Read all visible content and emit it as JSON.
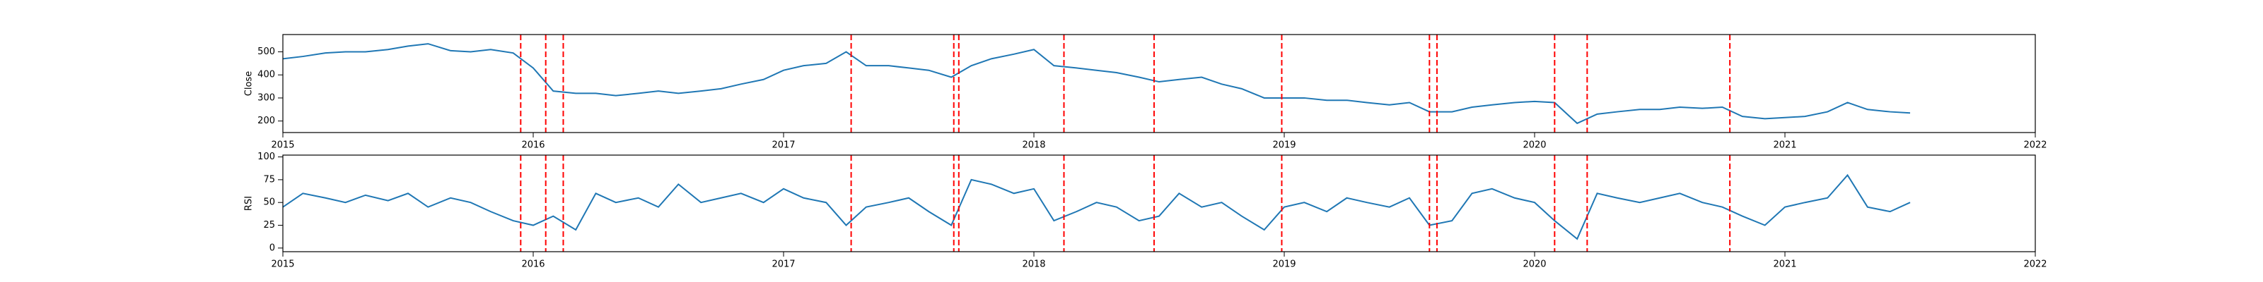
{
  "chart_data": [
    {
      "type": "line",
      "ylabel": "Close",
      "x": [
        2015,
        2015.08,
        2015.17,
        2015.25,
        2015.33,
        2015.42,
        2015.5,
        2015.58,
        2015.67,
        2015.75,
        2015.83,
        2015.92,
        2016,
        2016.08,
        2016.17,
        2016.25,
        2016.33,
        2016.42,
        2016.5,
        2016.58,
        2016.67,
        2016.75,
        2016.83,
        2016.92,
        2017,
        2017.08,
        2017.17,
        2017.25,
        2017.33,
        2017.42,
        2017.5,
        2017.58,
        2017.67,
        2017.75,
        2017.83,
        2017.92,
        2018,
        2018.08,
        2018.17,
        2018.25,
        2018.33,
        2018.42,
        2018.5,
        2018.58,
        2018.67,
        2018.75,
        2018.83,
        2018.92,
        2019,
        2019.08,
        2019.17,
        2019.25,
        2019.33,
        2019.42,
        2019.5,
        2019.58,
        2019.67,
        2019.75,
        2019.83,
        2019.92,
        2020,
        2020.08,
        2020.17,
        2020.25,
        2020.33,
        2020.42,
        2020.5,
        2020.58,
        2020.67,
        2020.75,
        2020.83,
        2020.92,
        2021,
        2021.08,
        2021.17,
        2021.25,
        2021.33,
        2021.42,
        2021.5
      ],
      "series": [
        {
          "name": "Close",
          "color": "#1f77b4",
          "values": [
            470,
            480,
            495,
            500,
            500,
            510,
            525,
            535,
            505,
            500,
            510,
            495,
            430,
            330,
            320,
            320,
            310,
            320,
            330,
            320,
            330,
            340,
            360,
            380,
            420,
            440,
            450,
            500,
            440,
            440,
            430,
            420,
            390,
            440,
            470,
            490,
            510,
            440,
            430,
            420,
            410,
            390,
            370,
            380,
            390,
            360,
            340,
            300,
            300,
            300,
            290,
            290,
            280,
            270,
            280,
            240,
            240,
            260,
            270,
            280,
            285,
            280,
            190,
            230,
            240,
            250,
            250,
            260,
            255,
            260,
            220,
            210,
            215,
            220,
            240,
            280,
            250,
            240,
            235
          ]
        }
      ],
      "vlines": [
        2015.95,
        2016.05,
        2016.12,
        2017.27,
        2017.68,
        2017.7,
        2018.12,
        2018.48,
        2018.99,
        2019.58,
        2019.61,
        2020.08,
        2020.21,
        2020.78
      ],
      "vline_color": "#ff0000",
      "xlim": [
        2015,
        2022
      ],
      "xticks": [
        2015,
        2016,
        2017,
        2018,
        2019,
        2020,
        2021,
        2022
      ],
      "ylim": [
        150,
        575
      ],
      "yticks": [
        200,
        300,
        400,
        500
      ]
    },
    {
      "type": "line",
      "ylabel": "RSI",
      "x": [
        2015,
        2015.08,
        2015.17,
        2015.25,
        2015.33,
        2015.42,
        2015.5,
        2015.58,
        2015.67,
        2015.75,
        2015.83,
        2015.92,
        2016,
        2016.08,
        2016.17,
        2016.25,
        2016.33,
        2016.42,
        2016.5,
        2016.58,
        2016.67,
        2016.75,
        2016.83,
        2016.92,
        2017,
        2017.08,
        2017.17,
        2017.25,
        2017.33,
        2017.42,
        2017.5,
        2017.58,
        2017.67,
        2017.75,
        2017.83,
        2017.92,
        2018,
        2018.08,
        2018.17,
        2018.25,
        2018.33,
        2018.42,
        2018.5,
        2018.58,
        2018.67,
        2018.75,
        2018.83,
        2018.92,
        2019,
        2019.08,
        2019.17,
        2019.25,
        2019.33,
        2019.42,
        2019.5,
        2019.58,
        2019.67,
        2019.75,
        2019.83,
        2019.92,
        2020,
        2020.08,
        2020.17,
        2020.25,
        2020.33,
        2020.42,
        2020.5,
        2020.58,
        2020.67,
        2020.75,
        2020.83,
        2020.92,
        2021,
        2021.08,
        2021.17,
        2021.25,
        2021.33,
        2021.42,
        2021.5
      ],
      "series": [
        {
          "name": "RSI",
          "color": "#1f77b4",
          "values": [
            45,
            60,
            55,
            50,
            58,
            52,
            60,
            45,
            55,
            50,
            40,
            30,
            25,
            35,
            20,
            60,
            50,
            55,
            45,
            70,
            50,
            55,
            60,
            50,
            65,
            55,
            50,
            25,
            45,
            50,
            55,
            40,
            25,
            75,
            70,
            60,
            65,
            30,
            40,
            50,
            45,
            30,
            35,
            60,
            45,
            50,
            35,
            20,
            45,
            50,
            40,
            55,
            50,
            45,
            55,
            25,
            30,
            60,
            65,
            55,
            50,
            30,
            10,
            60,
            55,
            50,
            55,
            60,
            50,
            45,
            35,
            25,
            45,
            50,
            55,
            80,
            45,
            40,
            50
          ]
        }
      ],
      "vlines": [
        2015.95,
        2016.05,
        2016.12,
        2017.27,
        2017.68,
        2017.7,
        2018.12,
        2018.48,
        2018.99,
        2019.58,
        2019.61,
        2020.08,
        2020.21,
        2020.78
      ],
      "vline_color": "#ff0000",
      "xlim": [
        2015,
        2022
      ],
      "xticks": [
        2015,
        2016,
        2017,
        2018,
        2019,
        2020,
        2021,
        2022
      ],
      "ylim": [
        -4,
        102
      ],
      "yticks": [
        0,
        25,
        50,
        75,
        100
      ]
    }
  ]
}
